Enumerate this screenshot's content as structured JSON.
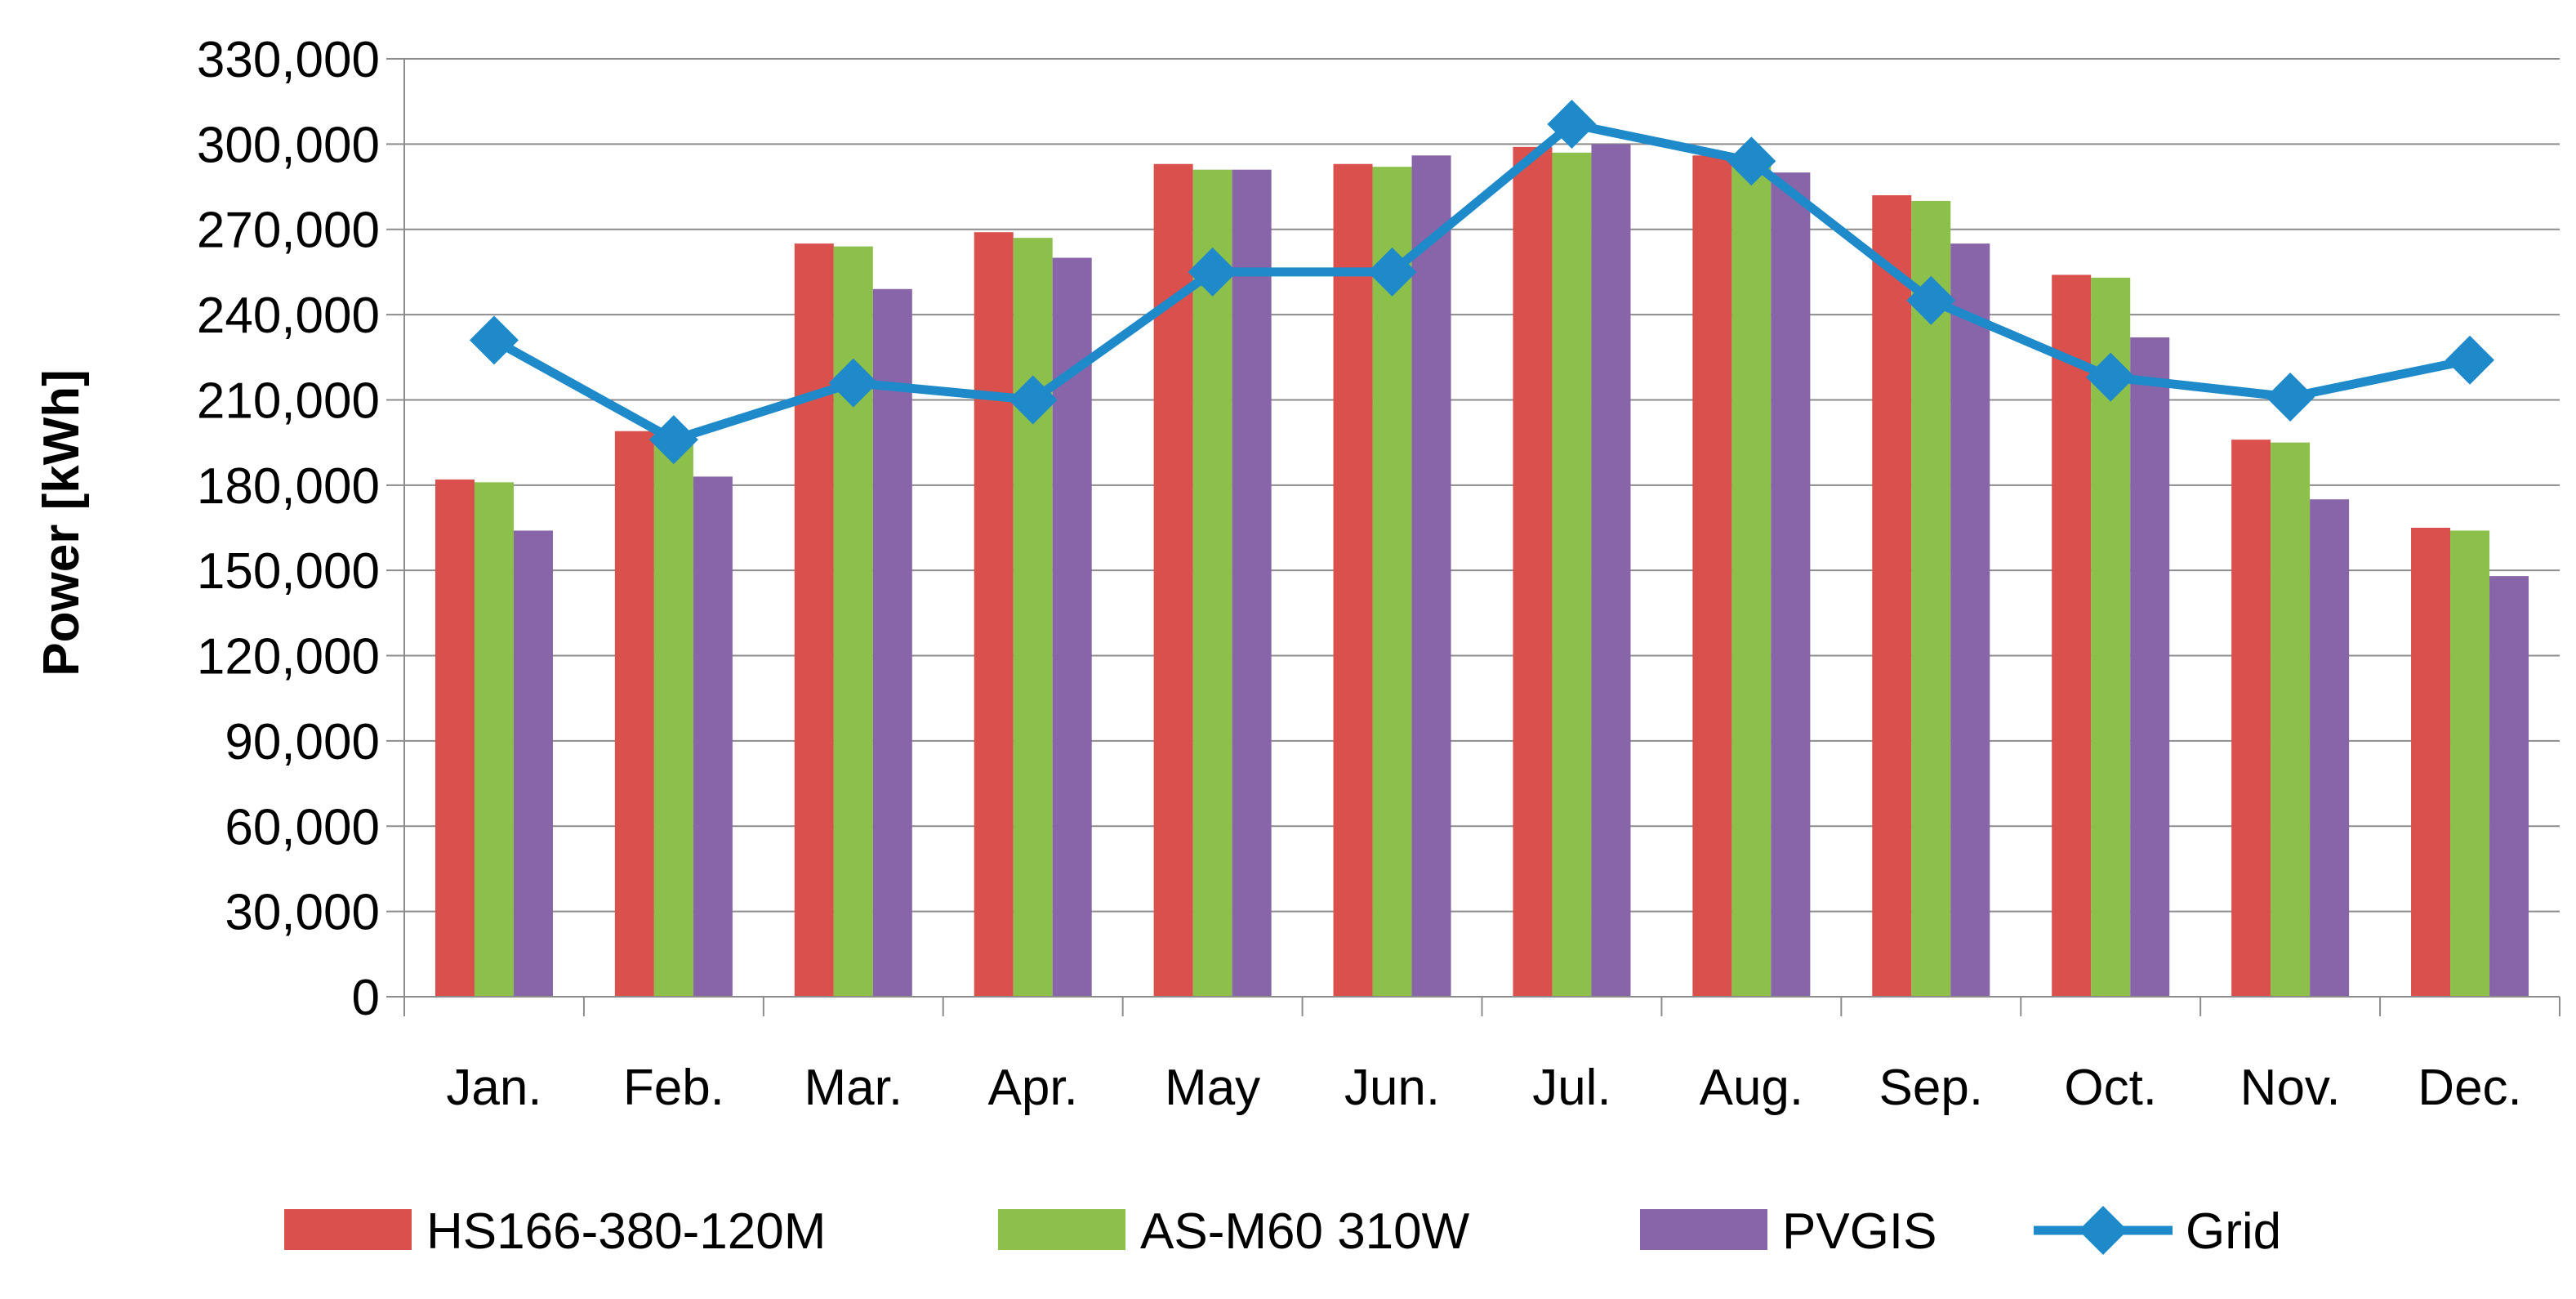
{
  "chart_data": {
    "type": "bar",
    "title": "",
    "xlabel": "",
    "ylabel": "Power [kWh]",
    "ylim": [
      0,
      330000
    ],
    "yticks": [
      0,
      30000,
      60000,
      90000,
      120000,
      150000,
      180000,
      210000,
      240000,
      270000,
      300000,
      330000
    ],
    "ytick_labels": [
      "0",
      "30,000",
      "60,000",
      "90,000",
      "120,000",
      "150,000",
      "180,000",
      "210,000",
      "240,000",
      "270,000",
      "300,000",
      "330,000"
    ],
    "grid": "horizontal",
    "legend_position": "bottom",
    "categories": [
      "Jan.",
      "Feb.",
      "Mar.",
      "Apr.",
      "May",
      "Jun.",
      "Jul.",
      "Aug.",
      "Sep.",
      "Oct.",
      "Nov.",
      "Dec."
    ],
    "series": [
      {
        "name": "HS166-380-120M",
        "kind": "bar",
        "color": "#D9504C",
        "values": [
          182000,
          199000,
          265000,
          269000,
          293000,
          293000,
          299000,
          296000,
          282000,
          254000,
          196000,
          165000
        ]
      },
      {
        "name": "AS-M60 310W",
        "kind": "bar",
        "color": "#8DBF4B",
        "values": [
          181000,
          197000,
          264000,
          267000,
          291000,
          292000,
          297000,
          294000,
          280000,
          253000,
          195000,
          164000
        ]
      },
      {
        "name": "PVGIS",
        "kind": "bar",
        "color": "#8765A8",
        "values": [
          164000,
          183000,
          249000,
          260000,
          291000,
          296000,
          300000,
          290000,
          265000,
          232000,
          175000,
          148000
        ]
      },
      {
        "name": "Grid",
        "kind": "line",
        "color": "#1F8AC9",
        "values": [
          231000,
          196000,
          216000,
          210000,
          255000,
          255000,
          307000,
          294000,
          245000,
          218000,
          211000,
          224000
        ]
      }
    ]
  }
}
